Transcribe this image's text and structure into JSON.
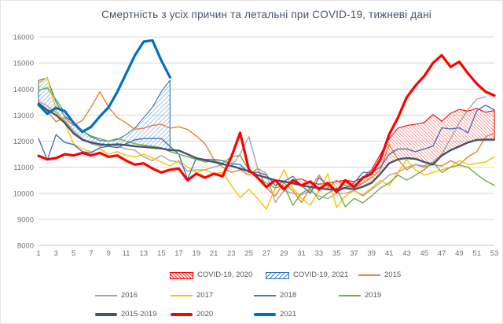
{
  "title": "Смертність з усіх причин та летальні при COVID-19, тижневі дані",
  "chart_data": {
    "type": "line",
    "title": "Смертність з усіх причин та летальні при COVID-19, тижневі дані",
    "xlabel": "",
    "ylabel": "",
    "xlim": [
      1,
      53
    ],
    "ylim": [
      8000,
      16000
    ],
    "grid": true,
    "legend_position": "bottom",
    "x_ticks": [
      "1",
      "3",
      "5",
      "7",
      "9",
      "11",
      "13",
      "15",
      "17",
      "19",
      "21",
      "23",
      "25",
      "27",
      "29",
      "31",
      "33",
      "35",
      "37",
      "39",
      "41",
      "43",
      "45",
      "47",
      "49",
      "51",
      "53"
    ],
    "y_ticks": [
      "8000",
      "9000",
      "10000",
      "11000",
      "12000",
      "13000",
      "14000",
      "15000",
      "16000"
    ],
    "areas": [
      {
        "name": "COVID-19, 2020",
        "hatch": "red",
        "line_color": "#FF0000",
        "week_start": 30,
        "upper": [
          10500,
          10550,
          10400,
          10350,
          10400,
          10450,
          10500,
          10450,
          10600,
          10900,
          11500,
          12100,
          12500,
          12600,
          12650,
          12720,
          13020,
          12770,
          13070,
          13220,
          13150,
          13260,
          13110,
          13170
        ],
        "lower": [
          10380,
          10300,
          10240,
          10200,
          10150,
          10150,
          10200,
          10150,
          10250,
          10400,
          10750,
          11150,
          11300,
          11350,
          11320,
          11200,
          11100,
          11450,
          11650,
          11800,
          11950,
          12050,
          12060,
          12060
        ]
      },
      {
        "name": "COVID-19, 2021",
        "hatch": "blue",
        "line_color": "#2E75B6",
        "week_start": 1,
        "upper": [
          14330,
          14430,
          13500,
          12950,
          12720,
          12400,
          12160,
          12030,
          12000,
          12060,
          12250,
          12510,
          12900,
          13300,
          13900,
          14340
        ],
        "lower": [
          13450,
          13200,
          13000,
          12700,
          12300,
          12050,
          11950,
          11880,
          11850,
          11880,
          11850,
          11800,
          11780,
          11750,
          11720,
          11660
        ]
      }
    ],
    "series": [
      {
        "name": "2015",
        "color": "#ED7D31",
        "width": 1.4,
        "values": [
          13500,
          13150,
          12750,
          12900,
          12600,
          12800,
          13300,
          13900,
          13300,
          12900,
          12700,
          12450,
          12500,
          12600,
          12650,
          12500,
          12550,
          12450,
          12200,
          11900,
          11300,
          11000,
          10800,
          10900,
          10700,
          10950,
          10200,
          9900,
          10400,
          10100,
          9650,
          10200,
          10700,
          10200,
          10500,
          10300,
          10200,
          10400,
          10600,
          10900,
          11870,
          11300,
          10900,
          11100,
          11000,
          11100,
          11050,
          11250,
          11100,
          11400,
          11600,
          12170,
          12300
        ]
      },
      {
        "name": "2016",
        "color": "#A5A5A5",
        "width": 1.4,
        "values": [
          13550,
          13350,
          13100,
          12800,
          12400,
          12100,
          11900,
          11800,
          11900,
          11800,
          11700,
          11650,
          11400,
          11250,
          11450,
          11250,
          11200,
          10850,
          10900,
          10900,
          11000,
          11100,
          11050,
          11500,
          12170,
          10960,
          10750,
          9650,
          10100,
          10000,
          9940,
          10100,
          9900,
          9790,
          10000,
          10000,
          10100,
          9900,
          10150,
          10400,
          10700,
          10800,
          11000,
          11100,
          11050,
          11200,
          11500,
          12100,
          12700,
          13200,
          13620,
          13700,
          null
        ]
      },
      {
        "name": "2017",
        "color": "#FFC000",
        "width": 1.4,
        "values": [
          14200,
          14450,
          13200,
          12700,
          11900,
          11700,
          11600,
          11700,
          11500,
          11600,
          11450,
          11400,
          11500,
          11350,
          11200,
          11050,
          11250,
          11000,
          10800,
          10900,
          10750,
          10800,
          10300,
          9840,
          10150,
          9800,
          9390,
          10200,
          10900,
          10200,
          9800,
          9540,
          10100,
          10750,
          9450,
          9900,
          10100,
          9940,
          10200,
          10500,
          10300,
          10800,
          11300,
          10900,
          10700,
          10800,
          10900,
          11000,
          11260,
          11100,
          11150,
          11200,
          11400
        ]
      },
      {
        "name": "2018",
        "color": "#4472C4",
        "width": 1.4,
        "values": [
          12100,
          11280,
          12250,
          11950,
          11870,
          11600,
          11550,
          11750,
          11800,
          11750,
          11900,
          12050,
          12100,
          12100,
          12100,
          11800,
          11500,
          10540,
          11350,
          11300,
          11300,
          11250,
          11140,
          11100,
          10800,
          10810,
          10700,
          10300,
          10450,
          10650,
          10300,
          10000,
          10600,
          10300,
          10050,
          10200,
          10400,
          10800,
          10800,
          11000,
          11500,
          11700,
          11700,
          11600,
          11700,
          11810,
          12510,
          12470,
          12510,
          12320,
          13170,
          13380,
          13200
        ]
      },
      {
        "name": "2019",
        "color": "#70AD47",
        "width": 1.4,
        "values": [
          13950,
          14050,
          13600,
          13100,
          12700,
          12400,
          12200,
          12100,
          12000,
          12100,
          12000,
          11900,
          11850,
          11800,
          11750,
          11600,
          11500,
          11400,
          11300,
          11200,
          11250,
          11150,
          11400,
          11450,
          10900,
          10600,
          10400,
          10200,
          10300,
          9540,
          10000,
          10200,
          9750,
          10000,
          10200,
          9480,
          9800,
          9630,
          9900,
          10200,
          10400,
          10700,
          10500,
          10700,
          10900,
          11200,
          10800,
          11000,
          11080,
          11000,
          10720,
          10480,
          10300
        ]
      },
      {
        "name": "2015-2019",
        "color": "#44546A",
        "width": 2.4,
        "values": [
          13450,
          13200,
          13000,
          12700,
          12300,
          12050,
          11950,
          11880,
          11850,
          11880,
          11850,
          11800,
          11780,
          11750,
          11720,
          11660,
          11640,
          11500,
          11350,
          11270,
          11200,
          11120,
          11050,
          10950,
          10840,
          10700,
          10600,
          10500,
          10450,
          10380,
          10300,
          10240,
          10200,
          10150,
          10150,
          10200,
          10150,
          10250,
          10400,
          10750,
          11150,
          11300,
          11350,
          11320,
          11200,
          11100,
          11450,
          11650,
          11800,
          11950,
          12050,
          12060,
          12060
        ]
      },
      {
        "name": "2020",
        "color": "#FF0000",
        "width": 3.2,
        "values": [
          11440,
          11300,
          11350,
          11500,
          11450,
          11550,
          11450,
          11550,
          11400,
          11450,
          11250,
          11100,
          11150,
          10950,
          10800,
          10900,
          10950,
          10500,
          10750,
          10600,
          10750,
          10650,
          11400,
          12320,
          10900,
          10600,
          10240,
          10500,
          10150,
          10500,
          10300,
          10450,
          10150,
          10400,
          10050,
          10500,
          10240,
          10600,
          10750,
          11300,
          12260,
          12900,
          13680,
          14130,
          14500,
          15000,
          15300,
          14850,
          15050,
          14600,
          14200,
          13900,
          13750
        ]
      },
      {
        "name": "2021",
        "color": "#0070C0",
        "width": 3.2,
        "values": [
          13400,
          13050,
          13280,
          13150,
          12700,
          12360,
          12550,
          12950,
          13300,
          13900,
          14600,
          15300,
          15820,
          15870,
          15100,
          14450,
          null,
          null,
          null,
          null,
          null,
          null,
          null,
          null,
          null,
          null,
          null,
          null,
          null,
          null,
          null,
          null,
          null,
          null,
          null,
          null,
          null,
          null,
          null,
          null,
          null,
          null,
          null,
          null,
          null,
          null,
          null,
          null,
          null,
          null,
          null,
          null,
          null
        ]
      }
    ]
  },
  "legend": {
    "rows": [
      [
        {
          "label": "COVID-19, 2020",
          "swatch": "hatch-red",
          "color": "#FF0000"
        },
        {
          "label": "COVID-19, 2021",
          "swatch": "hatch-blue",
          "color": "#2E75B6"
        },
        {
          "label": "2015",
          "swatch": "line",
          "color": "#ED7D31"
        }
      ],
      [
        {
          "label": "2016",
          "swatch": "line",
          "color": "#A5A5A5"
        },
        {
          "label": "2017",
          "swatch": "line",
          "color": "#FFC000"
        },
        {
          "label": "2018",
          "swatch": "line",
          "color": "#4472C4"
        },
        {
          "label": "2019",
          "swatch": "line",
          "color": "#70AD47"
        }
      ],
      [
        {
          "label": "2015-2019",
          "swatch": "line-thick",
          "color": "#44546A"
        },
        {
          "label": "2020",
          "swatch": "line-thick",
          "color": "#FF0000"
        },
        {
          "label": "2021",
          "swatch": "line-thick",
          "color": "#0070C0"
        }
      ]
    ]
  },
  "colors": {
    "title": "#44546A",
    "tick_labels": "#737373",
    "gridline": "#D9D9D9",
    "axis_line": "#BFBFBF",
    "legend_text": "#595959"
  }
}
